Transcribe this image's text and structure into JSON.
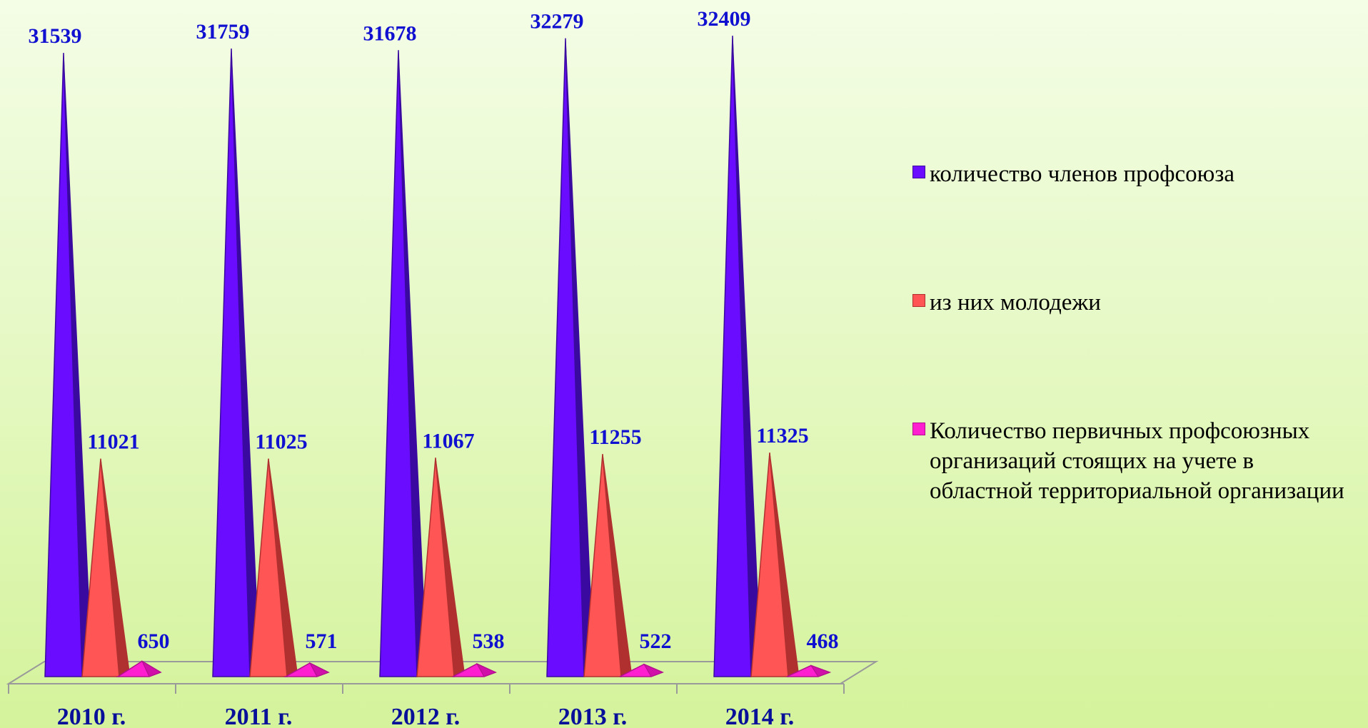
{
  "chart_data": {
    "type": "bar",
    "categories": [
      "2010 г.",
      "2011 г.",
      "2012 г.",
      "2013 г.",
      "2014 г."
    ],
    "series": [
      {
        "name": "количество членов профсоюза",
        "values": [
          31539,
          31759,
          31678,
          32279,
          32409
        ],
        "color": "#6a0cff"
      },
      {
        "name": "из них молодежи",
        "values": [
          11021,
          11025,
          11067,
          11255,
          11325
        ],
        "color": "#ff5555"
      },
      {
        "name": "Количество первичных профсоюзных организаций стоящих на учете в областной территориальной организации",
        "values": [
          650,
          571,
          538,
          522,
          468
        ],
        "color": "#ff1fd0"
      }
    ],
    "ylim": [
      0,
      32409
    ],
    "grid": false,
    "legend_position": "right"
  }
}
